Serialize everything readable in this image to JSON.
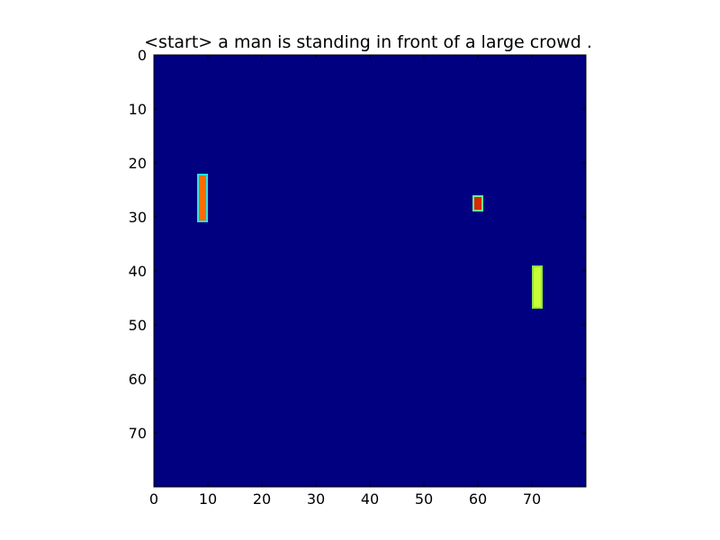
{
  "chart_data": {
    "type": "heatmap",
    "title": "<start> a man is standing in front of a large crowd .",
    "xlabel": "",
    "ylabel": "",
    "xlim": [
      0,
      80
    ],
    "ylim": [
      80,
      0
    ],
    "xticks": [
      0,
      10,
      20,
      30,
      40,
      50,
      60,
      70
    ],
    "yticks": [
      0,
      10,
      20,
      30,
      40,
      50,
      60,
      70
    ],
    "colormap": "jet",
    "background_color": "#000080",
    "grid": false,
    "hotspots": [
      {
        "x": [
          8,
          10
        ],
        "y": [
          22,
          31
        ],
        "edge_color": "#26e6e6",
        "core_color": "#ff6a00"
      },
      {
        "x": [
          59,
          61
        ],
        "y": [
          26,
          29
        ],
        "edge_color": "#70ff8a",
        "core_color": "#d42a00"
      },
      {
        "x": [
          70,
          72
        ],
        "y": [
          39,
          47
        ],
        "edge_color": "#8fe24a",
        "core_color": "#c6ff34"
      }
    ]
  }
}
